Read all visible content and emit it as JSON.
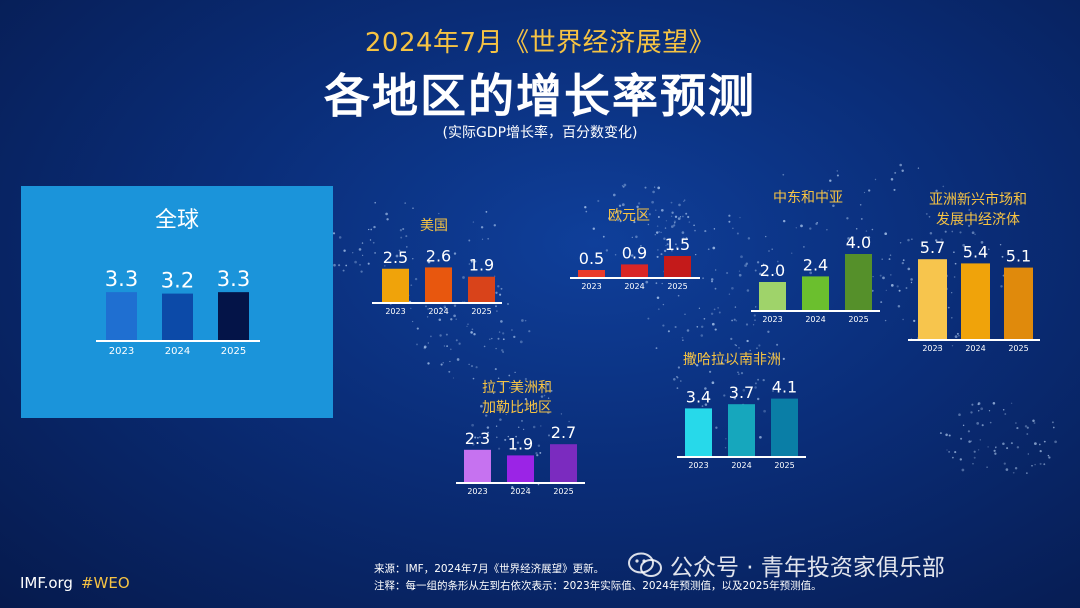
{
  "supertitle": "2024年7月《世界经济展望》",
  "title": "各地区的增长率预测",
  "subtitle": "(实际GDP增长率，百分数变化)",
  "source_line1": "来源：IMF，2024年7月《世界经济展望》更新。",
  "source_line2": "注释：每一组的条形从左到右依次表示：2023年实际值、2024年预测值，以及2025年预测值。",
  "footer": {
    "site": "IMF.org",
    "hashtag": "#WEO"
  },
  "watermark": "公众号 · 青年投资家俱乐部",
  "colors": {
    "background": "#0a2d78",
    "accent": "#f6c343",
    "global_panel": "#1b94da"
  },
  "chart_data": [
    {
      "type": "bar",
      "title": "全球",
      "categories": [
        "2023",
        "2024",
        "2025"
      ],
      "values": [
        3.3,
        3.2,
        3.3
      ],
      "colors": [
        "#1f6fd1",
        "#0c4aa8",
        "#041448"
      ]
    },
    {
      "type": "bar",
      "title": "美国",
      "categories": [
        "2023",
        "2024",
        "2025"
      ],
      "values": [
        2.5,
        2.6,
        1.9
      ],
      "colors": [
        "#f0a30a",
        "#e8570e",
        "#d9431a"
      ]
    },
    {
      "type": "bar",
      "title": "欧元区",
      "categories": [
        "2023",
        "2024",
        "2025"
      ],
      "values": [
        0.5,
        0.9,
        1.5
      ],
      "colors": [
        "#ea3b2b",
        "#d92626",
        "#c41a1a"
      ]
    },
    {
      "type": "bar",
      "title": "中东和中亚",
      "categories": [
        "2023",
        "2024",
        "2025"
      ],
      "values": [
        2.0,
        2.4,
        4.0
      ],
      "colors": [
        "#9fd36a",
        "#6bbf2e",
        "#55902a"
      ]
    },
    {
      "type": "bar",
      "title": "亚洲新兴市场和\n发展中经济体",
      "categories": [
        "2023",
        "2024",
        "2025"
      ],
      "values": [
        5.7,
        5.4,
        5.1
      ],
      "colors": [
        "#f7c54d",
        "#f0a30a",
        "#e08a0c"
      ]
    },
    {
      "type": "bar",
      "title": "拉丁美洲和\n加勒比地区",
      "categories": [
        "2023",
        "2024",
        "2025"
      ],
      "values": [
        2.3,
        1.9,
        2.7
      ],
      "colors": [
        "#c672f0",
        "#9b24e6",
        "#7b2bbf"
      ]
    },
    {
      "type": "bar",
      "title": "撒哈拉以南非洲",
      "categories": [
        "2023",
        "2024",
        "2025"
      ],
      "values": [
        3.4,
        3.7,
        4.1
      ],
      "colors": [
        "#27d9ea",
        "#16a7bd",
        "#0a7ea6"
      ]
    }
  ]
}
